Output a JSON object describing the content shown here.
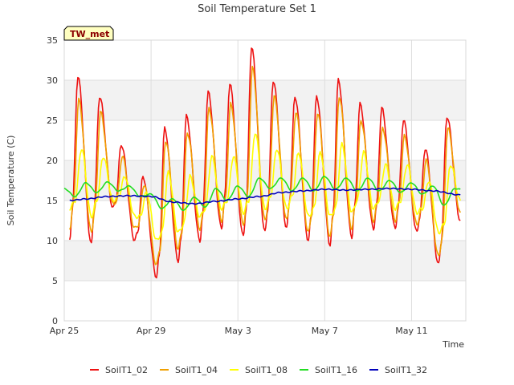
{
  "chart_data": {
    "type": "line",
    "title": "Soil Temperature Set 1",
    "badge": "TW_met",
    "xlabel": "Time",
    "ylabel": "Soil Temperature (C)",
    "ylim": [
      0,
      35
    ],
    "xlim": [
      "2025-04-25",
      "2025-05-13T12:00"
    ],
    "yticks": [
      0,
      5,
      10,
      15,
      20,
      25,
      30,
      35
    ],
    "xticks": [
      {
        "label": "Apr 25",
        "date": "2025-04-25"
      },
      {
        "label": "Apr 29",
        "date": "2025-04-29"
      },
      {
        "label": "May 3",
        "date": "2025-05-03"
      },
      {
        "label": "May 7",
        "date": "2025-05-07"
      },
      {
        "label": "May 11",
        "date": "2025-05-11"
      }
    ],
    "grid": true,
    "legend_position": "bottom",
    "series": [
      {
        "name": "SoilT1_02",
        "color": "#ee1111",
        "x": [
          "2025-04-25T06:00",
          "2025-04-25T09:00",
          "2025-04-25T15:00",
          "2025-04-26T06:00",
          "2025-04-26T09:00",
          "2025-04-26T15:00",
          "2025-04-27T06:00",
          "2025-04-27T09:00",
          "2025-04-27T15:00",
          "2025-04-28T06:00",
          "2025-04-28T09:00",
          "2025-04-28T15:00",
          "2025-04-29T06:00",
          "2025-04-29T09:00",
          "2025-04-29T15:00",
          "2025-04-30T06:00",
          "2025-04-30T09:00",
          "2025-04-30T15:00",
          "2025-05-01T06:00",
          "2025-05-01T09:00",
          "2025-05-01T15:00",
          "2025-05-02T06:00",
          "2025-05-02T09:00",
          "2025-05-02T15:00",
          "2025-05-03T06:00",
          "2025-05-03T09:00",
          "2025-05-03T15:00",
          "2025-05-04T06:00",
          "2025-05-04T09:00",
          "2025-05-04T15:00",
          "2025-05-05T06:00",
          "2025-05-05T09:00",
          "2025-05-05T15:00",
          "2025-05-06T06:00",
          "2025-05-06T09:00",
          "2025-05-06T15:00",
          "2025-05-07T06:00",
          "2025-05-07T09:00",
          "2025-05-07T15:00",
          "2025-05-08T06:00",
          "2025-05-08T09:00",
          "2025-05-08T15:00",
          "2025-05-09T06:00",
          "2025-05-09T09:00",
          "2025-05-09T15:00",
          "2025-05-10T06:00",
          "2025-05-10T09:00",
          "2025-05-10T15:00",
          "2025-05-11T06:00",
          "2025-05-11T09:00",
          "2025-05-11T15:00",
          "2025-05-12T06:00",
          "2025-05-12T09:00",
          "2025-05-12T15:00",
          "2025-05-13T06:00"
        ],
        "values": [
          10,
          14,
          30.5,
          9.5,
          14,
          28,
          14,
          15,
          22,
          10,
          11,
          18,
          5.5,
          8,
          24,
          7.5,
          10,
          25.5,
          10,
          13,
          28.5,
          11.5,
          15,
          29.5,
          10.5,
          14,
          34.2,
          11,
          14,
          30,
          11.5,
          15,
          28,
          10,
          13,
          28,
          9.5,
          13,
          30,
          10.5,
          14,
          27,
          11.5,
          14,
          26.5,
          11.5,
          14,
          25,
          11,
          13,
          21.5,
          7,
          10,
          25.5,
          12.5
        ]
      },
      {
        "name": "SoilT1_04",
        "color": "#f0a000",
        "x": [
          "2025-04-25T06:00",
          "2025-04-25T10:00",
          "2025-04-25T16:00",
          "2025-04-26T06:00",
          "2025-04-26T10:00",
          "2025-04-26T16:00",
          "2025-04-27T06:00",
          "2025-04-27T10:00",
          "2025-04-27T16:00",
          "2025-04-28T06:00",
          "2025-04-28T10:00",
          "2025-04-28T16:00",
          "2025-04-29T06:00",
          "2025-04-29T10:00",
          "2025-04-29T16:00",
          "2025-04-30T06:00",
          "2025-04-30T10:00",
          "2025-04-30T16:00",
          "2025-05-01T06:00",
          "2025-05-01T10:00",
          "2025-05-01T16:00",
          "2025-05-02T06:00",
          "2025-05-02T10:00",
          "2025-05-02T16:00",
          "2025-05-03T06:00",
          "2025-05-03T10:00",
          "2025-05-03T16:00",
          "2025-05-04T06:00",
          "2025-05-04T10:00",
          "2025-05-04T16:00",
          "2025-05-05T06:00",
          "2025-05-05T10:00",
          "2025-05-05T16:00",
          "2025-05-06T06:00",
          "2025-05-06T10:00",
          "2025-05-06T16:00",
          "2025-05-07T06:00",
          "2025-05-07T10:00",
          "2025-05-07T16:00",
          "2025-05-08T06:00",
          "2025-05-08T10:00",
          "2025-05-08T16:00",
          "2025-05-09T06:00",
          "2025-05-09T10:00",
          "2025-05-09T16:00",
          "2025-05-10T06:00",
          "2025-05-10T10:00",
          "2025-05-10T16:00",
          "2025-05-11T06:00",
          "2025-05-11T10:00",
          "2025-05-11T16:00",
          "2025-05-12T06:00",
          "2025-05-12T10:00",
          "2025-05-12T16:00",
          "2025-05-13T06:00"
        ],
        "values": [
          11.5,
          14.5,
          27.5,
          11,
          14,
          26,
          14.5,
          15,
          20.5,
          11.5,
          12,
          17,
          7,
          9,
          22.5,
          9,
          11,
          23.5,
          11.5,
          13.5,
          26.5,
          12.5,
          15,
          27,
          12,
          15,
          31.5,
          12.5,
          15,
          28,
          12.5,
          15.5,
          26,
          11,
          13.5,
          26,
          10.5,
          13.5,
          28,
          11.5,
          14.5,
          25,
          12.5,
          14.5,
          24,
          12.5,
          14.5,
          23,
          12,
          13.5,
          20,
          8,
          10.5,
          24,
          13.5
        ]
      },
      {
        "name": "SoilT1_08",
        "color": "#ffff00",
        "x": [
          "2025-04-25T06:00",
          "2025-04-25T12:00",
          "2025-04-25T19:00",
          "2025-04-26T06:00",
          "2025-04-26T12:00",
          "2025-04-26T19:00",
          "2025-04-27T06:00",
          "2025-04-27T12:00",
          "2025-04-27T19:00",
          "2025-04-28T06:00",
          "2025-04-28T12:00",
          "2025-04-28T19:00",
          "2025-04-29T06:00",
          "2025-04-29T12:00",
          "2025-04-29T19:00",
          "2025-04-30T06:00",
          "2025-04-30T12:00",
          "2025-04-30T19:00",
          "2025-05-01T06:00",
          "2025-05-01T12:00",
          "2025-05-01T19:00",
          "2025-05-02T06:00",
          "2025-05-02T12:00",
          "2025-05-02T19:00",
          "2025-05-03T06:00",
          "2025-05-03T12:00",
          "2025-05-03T19:00",
          "2025-05-04T06:00",
          "2025-05-04T12:00",
          "2025-05-04T19:00",
          "2025-05-05T06:00",
          "2025-05-05T12:00",
          "2025-05-05T19:00",
          "2025-05-06T06:00",
          "2025-05-06T12:00",
          "2025-05-06T19:00",
          "2025-05-07T06:00",
          "2025-05-07T12:00",
          "2025-05-07T19:00",
          "2025-05-08T06:00",
          "2025-05-08T12:00",
          "2025-05-08T19:00",
          "2025-05-09T06:00",
          "2025-05-09T12:00",
          "2025-05-09T19:00",
          "2025-05-10T06:00",
          "2025-05-10T12:00",
          "2025-05-10T19:00",
          "2025-05-11T06:00",
          "2025-05-11T12:00",
          "2025-05-11T19:00",
          "2025-05-12T06:00",
          "2025-05-12T12:00",
          "2025-05-12T19:00",
          "2025-05-13T06:00"
        ],
        "values": [
          14,
          15,
          21.5,
          13,
          15,
          20.5,
          15,
          15.5,
          18,
          13,
          13,
          16,
          10,
          11,
          18.5,
          11,
          12,
          18,
          13,
          14,
          20.5,
          14,
          15,
          20.5,
          13.5,
          15,
          23.5,
          14,
          15.5,
          21.5,
          14,
          15.5,
          21,
          13,
          14,
          21,
          13,
          14,
          22,
          13.5,
          15,
          21,
          14,
          15,
          19.5,
          14,
          15,
          19.5,
          13.5,
          14,
          17.5,
          11,
          12,
          19.5,
          15
        ]
      },
      {
        "name": "SoilT1_16",
        "color": "#22dd22",
        "x": [
          "2025-04-25T00:00",
          "2025-04-25T12:00",
          "2025-04-26T00:00",
          "2025-04-26T12:00",
          "2025-04-27T00:00",
          "2025-04-27T12:00",
          "2025-04-28T00:00",
          "2025-04-28T12:00",
          "2025-04-29T00:00",
          "2025-04-29T12:00",
          "2025-04-30T00:00",
          "2025-04-30T12:00",
          "2025-05-01T00:00",
          "2025-05-01T12:00",
          "2025-05-02T00:00",
          "2025-05-02T12:00",
          "2025-05-03T00:00",
          "2025-05-03T12:00",
          "2025-05-04T00:00",
          "2025-05-04T12:00",
          "2025-05-05T00:00",
          "2025-05-05T12:00",
          "2025-05-06T00:00",
          "2025-05-06T12:00",
          "2025-05-07T00:00",
          "2025-05-07T12:00",
          "2025-05-08T00:00",
          "2025-05-08T12:00",
          "2025-05-09T00:00",
          "2025-05-09T12:00",
          "2025-05-10T00:00",
          "2025-05-10T12:00",
          "2025-05-11T00:00",
          "2025-05-11T12:00",
          "2025-05-12T00:00",
          "2025-05-12T12:00",
          "2025-05-13T00:00",
          "2025-05-13T06:00"
        ],
        "values": [
          16.5,
          15.5,
          17.2,
          16,
          17.3,
          16.2,
          16.8,
          15.5,
          15.8,
          14,
          15.2,
          13.8,
          15.4,
          14.2,
          16.5,
          15,
          16.8,
          15.5,
          17.8,
          16.5,
          17.8,
          16.2,
          17.8,
          16.2,
          18,
          16.4,
          17.8,
          16.2,
          17.8,
          16.2,
          17.5,
          16,
          17.2,
          15.8,
          16.8,
          14.4,
          16.5,
          16.4
        ]
      },
      {
        "name": "SoilT1_32",
        "color": "#0000bb",
        "x": [
          "2025-04-25T06:00",
          "2025-04-26T00:00",
          "2025-04-27T00:00",
          "2025-04-28T00:00",
          "2025-04-29T00:00",
          "2025-04-30T00:00",
          "2025-05-01T00:00",
          "2025-05-02T00:00",
          "2025-05-03T00:00",
          "2025-05-04T00:00",
          "2025-05-05T00:00",
          "2025-05-06T00:00",
          "2025-05-07T00:00",
          "2025-05-08T00:00",
          "2025-05-09T00:00",
          "2025-05-10T00:00",
          "2025-05-11T00:00",
          "2025-05-12T00:00",
          "2025-05-13T06:00"
        ],
        "values": [
          15.0,
          15.2,
          15.5,
          15.6,
          15.5,
          14.8,
          14.6,
          14.9,
          15.2,
          15.5,
          16.0,
          16.2,
          16.4,
          16.3,
          16.4,
          16.5,
          16.4,
          16.2,
          15.7
        ]
      }
    ]
  }
}
